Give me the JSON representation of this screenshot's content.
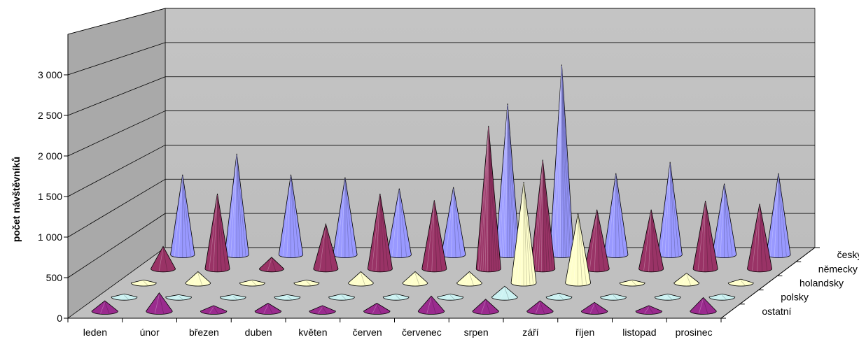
{
  "chart_data": {
    "type": "bar",
    "bar_shape": "cone",
    "projection": "3d",
    "title": "",
    "xlabel": "",
    "ylabel": "počet návštěvníků",
    "ylim": [
      0,
      3500
    ],
    "yticks": [
      0,
      500,
      1000,
      1500,
      2000,
      2500,
      3000
    ],
    "ytick_labels": [
      "0",
      "500",
      "1 000",
      "1 500",
      "2 000",
      "2 500",
      "3 000"
    ],
    "grid": true,
    "categories": [
      "leden",
      "únor",
      "březen",
      "duben",
      "květen",
      "červen",
      "červenec",
      "srpen",
      "září",
      "říjen",
      "listopad",
      "prosinec"
    ],
    "series": [
      {
        "name": "ostatní",
        "color": "#9a2b8e",
        "values": [
          130,
          230,
          70,
          100,
          70,
          100,
          190,
          150,
          130,
          110,
          70,
          170
        ]
      },
      {
        "name": "polsky",
        "color": "#ccf2f2",
        "values": [
          40,
          30,
          30,
          30,
          40,
          40,
          40,
          140,
          50,
          40,
          40,
          40
        ]
      },
      {
        "name": "holandsky",
        "color": "#ffffcc",
        "values": [
          40,
          150,
          40,
          40,
          150,
          150,
          150,
          1350,
          930,
          40,
          130,
          50
        ]
      },
      {
        "name": "německy",
        "color": "#993366",
        "values": [
          310,
          1040,
          160,
          620,
          1040,
          950,
          1980,
          1510,
          820,
          820,
          940,
          900
        ]
      },
      {
        "name": "česky",
        "color": "#9999ff",
        "values": [
          1150,
          1450,
          1150,
          1110,
          950,
          970,
          2170,
          2730,
          1170,
          1330,
          1020,
          1170
        ]
      }
    ]
  }
}
